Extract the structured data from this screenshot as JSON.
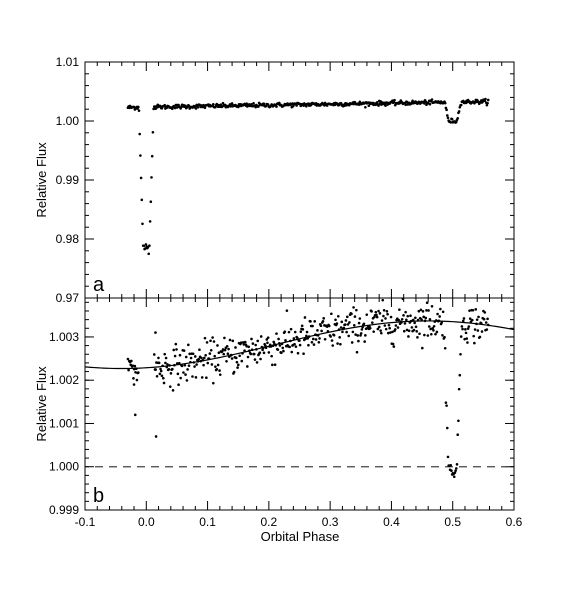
{
  "figure": {
    "xlabel": "Orbital Phase",
    "xticks": [
      "-0.1",
      "0.0",
      "0.1",
      "0.2",
      "0.3",
      "0.4",
      "0.5",
      "0.6"
    ]
  },
  "chart_data": [
    {
      "type": "scatter",
      "panel_label": "a",
      "ylabel": "Relative Flux",
      "xlim": [
        -0.1,
        0.6
      ],
      "ylim": [
        0.97,
        1.01
      ],
      "yticks": [
        "0.97",
        "0.98",
        "0.99",
        "1.00",
        "1.01"
      ],
      "xtick_values": [
        -0.1,
        0.0,
        0.1,
        0.2,
        0.3,
        0.4,
        0.5,
        0.6
      ],
      "ytick_values": [
        0.97,
        0.98,
        0.99,
        1.0,
        1.01
      ],
      "baseline_start": 1.0023,
      "baseline_end": 1.0033,
      "primary_eclipse": {
        "phase": 0.0,
        "depth_min": 0.9785,
        "ingress": -0.012,
        "egress": 0.012
      },
      "secondary_eclipse": {
        "phase": 0.5,
        "flux_min": 1.0,
        "ingress": 0.488,
        "egress": 0.513
      },
      "data_phase_range": [
        -0.03,
        0.558
      ]
    },
    {
      "type": "scatter",
      "panel_label": "b",
      "ylabel": "Relative Flux",
      "xlim": [
        -0.1,
        0.6
      ],
      "ylim": [
        0.999,
        1.0039
      ],
      "yticks": [
        "0.999",
        "1.000",
        "1.001",
        "1.002",
        "1.003"
      ],
      "xtick_values": [
        -0.1,
        0.0,
        0.1,
        0.2,
        0.3,
        0.4,
        0.5,
        0.6
      ],
      "ytick_values": [
        0.999,
        1.0,
        1.001,
        1.002,
        1.003
      ],
      "model_curve": {
        "mean": 1.00282,
        "amplitude": 0.00055,
        "peak_phase": 0.46
      },
      "reference_line": 1.0,
      "data_phase_range": [
        -0.03,
        0.558
      ],
      "scatter_sigma": 0.00022
    }
  ]
}
